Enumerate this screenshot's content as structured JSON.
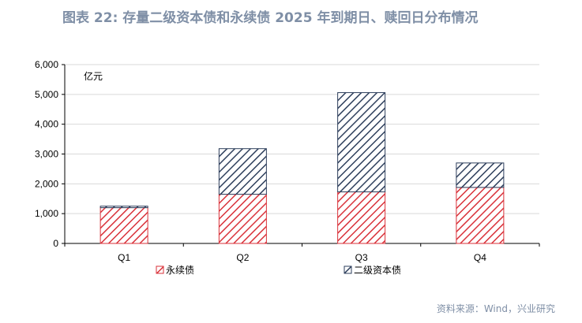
{
  "title": "图表 22: 存量二级资本债和永续债 2025 年到期日、赎回日分布情况",
  "source": "资料来源：Wind，兴业研究",
  "colors": {
    "title": "#7f8fa6",
    "perpetual": "#d9323a",
    "tier2": "#2e3f5c",
    "grid": "#d9d9d9"
  },
  "chart_data": {
    "type": "bar",
    "stacked": true,
    "unit_label": "亿元",
    "categories": [
      "Q1",
      "Q2",
      "Q3",
      "Q4"
    ],
    "series": [
      {
        "name": "永续债",
        "values": [
          1200,
          1650,
          1730,
          1880
        ],
        "color": "#d9323a",
        "pattern": "diagonal-hatch"
      },
      {
        "name": "二级资本债",
        "values": [
          50,
          1530,
          3330,
          820
        ],
        "color": "#2e3f5c",
        "pattern": "diagonal-hatch"
      }
    ],
    "ylim": [
      0,
      6000
    ],
    "yticks": [
      0,
      1000,
      2000,
      3000,
      4000,
      5000,
      6000
    ],
    "ytick_labels": [
      "0",
      "1,000",
      "2,000",
      "3,000",
      "4,000",
      "5,000",
      "6,000"
    ],
    "grid": true,
    "legend_position": "bottom"
  }
}
